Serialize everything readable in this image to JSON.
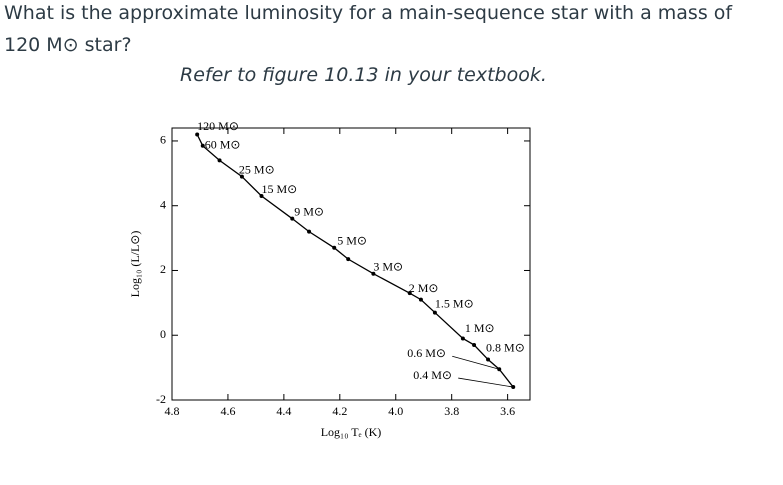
{
  "question": {
    "line1": "What is the approximate luminosity for a main-sequence star with a mass of",
    "line2": "120 M⊙ star?",
    "instruction": "Refer to figure 10.13 in your textbook."
  },
  "chart_data": {
    "type": "line",
    "xlabel": "Log₁₀ Tₑ (K)",
    "ylabel": "Log₁₀ (L/L⊙)",
    "color": "#000000",
    "x": [
      4.71,
      4.69,
      4.63,
      4.55,
      4.48,
      4.37,
      4.31,
      4.22,
      4.17,
      4.08,
      3.95,
      3.91,
      3.86,
      3.76,
      3.72,
      3.67,
      3.63,
      3.58
    ],
    "values": [
      6.2,
      5.85,
      5.4,
      4.9,
      4.3,
      3.6,
      3.2,
      2.7,
      2.35,
      1.9,
      1.3,
      1.1,
      0.7,
      -0.1,
      -0.3,
      -0.75,
      -1.05,
      -1.6
    ],
    "point_labels": [
      "120 M⊙",
      "60 M⊙",
      null,
      "25 M⊙",
      "15 M⊙",
      "9 M⊙",
      null,
      "5 M⊙",
      null,
      "3 M⊙",
      "2 M⊙",
      null,
      "1.5 M⊙",
      "1 M⊙",
      null,
      "0.8 M⊙",
      "0.6 M⊙",
      "0.4 M⊙"
    ],
    "xlim": [
      4.8,
      3.52
    ],
    "ylim": [
      -2,
      6.4
    ],
    "xticks": [
      4.8,
      4.6,
      4.4,
      4.2,
      {
        "value": 4.0,
        "label": "4.0"
      },
      3.8,
      3.6
    ],
    "yticks": [
      -2,
      0,
      2,
      4,
      6
    ]
  }
}
